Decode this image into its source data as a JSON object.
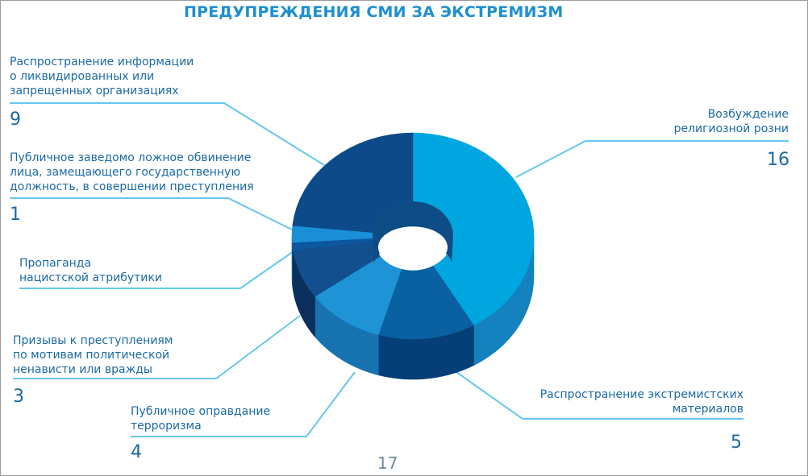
{
  "page_number": "17",
  "colors": {
    "top": [
      "#00a6e0",
      "#0a61a2",
      "#1e93d6",
      "#114f8e",
      "#0b58a0",
      "#1a8fd8",
      "#0d4a8a"
    ],
    "side": [
      "#1382bf",
      "#063f77",
      "#1673b0",
      "#0a2f5c",
      "#07396f",
      "#126faf",
      "#083462"
    ],
    "hole": [
      "#117ea8",
      "#0d4c84"
    ],
    "line": "#66c7ee",
    "text": "#1b6aa3",
    "title": "#1e8fd0"
  },
  "chart_data": {
    "type": "pie",
    "title": "ПРЕДУПРЕЖДЕНИЯ СМИ ЗА ЭКСТРЕМИЗМ",
    "unit": "",
    "slices": [
      {
        "label": "Возбуждение религиозной розни",
        "value": 16
      },
      {
        "label": "Распространение экстремистских материалов",
        "value": 5
      },
      {
        "label": "Публичное оправдание терроризма",
        "value": 4
      },
      {
        "label": "Призывы к преступлениям по мотивам политической ненависти или вражды",
        "value": 3
      },
      {
        "label": "Пропаганда нацистской атрибутики",
        "value": 0
      },
      {
        "label": "Публичное заведомо ложное обвинение лица, замещающего государственную должность, в совершении преступления",
        "value": 1
      },
      {
        "label": "Распространение информации о ликвидированных или запрещенных организациях",
        "value": 9
      }
    ],
    "labels": [
      {
        "text": "Возбуждение\nрелигиозной розни",
        "value": "16"
      },
      {
        "text": "Распространение экстремистских\nматериалов",
        "value": "5"
      },
      {
        "text": "Публичное оправдание\nтерроризма",
        "value": "4"
      },
      {
        "text": "Призывы к преступлениям\nпо мотивам политической\nненависти или вражды",
        "value": "3"
      },
      {
        "text": "Пропаганда\nнацистской атрибутики",
        "value": ""
      },
      {
        "text": "Публичное заведомо ложное обвинение\nлица, замещающего государственную\nдолжность, в совершении преступления",
        "value": "1"
      },
      {
        "text": "Распространение информации\nо ликвидированных или\nзапрещенных организациях",
        "value": "9"
      }
    ]
  }
}
